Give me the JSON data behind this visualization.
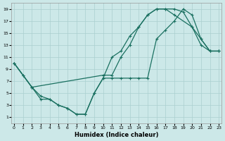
{
  "bg_color": "#cce8e8",
  "grid_color": "#aacfcf",
  "line_color": "#1a7060",
  "xlabel": "Humidex (Indice chaleur)",
  "xlim": [
    -0.3,
    23.3
  ],
  "ylim": [
    0,
    20
  ],
  "xticks": [
    0,
    1,
    2,
    3,
    4,
    5,
    6,
    7,
    8,
    9,
    10,
    11,
    12,
    13,
    14,
    15,
    16,
    17,
    18,
    19,
    20,
    21,
    22,
    23
  ],
  "yticks": [
    1,
    3,
    5,
    7,
    9,
    11,
    13,
    15,
    17,
    19
  ],
  "line1_x": [
    0,
    1,
    2,
    3,
    4,
    5,
    6,
    7,
    8,
    9,
    10,
    11,
    12,
    13,
    14,
    15,
    16,
    17,
    18,
    19,
    20,
    21,
    22,
    23
  ],
  "line1_y": [
    10,
    8,
    6,
    4,
    4,
    3,
    2.5,
    1.5,
    1.5,
    5,
    7.5,
    11,
    12,
    14.5,
    16,
    18,
    19,
    19,
    19,
    18.5,
    16,
    13,
    12,
    12
  ],
  "line2_x": [
    0,
    2,
    10,
    11,
    12,
    13,
    14,
    15,
    16,
    17,
    18,
    20,
    21,
    22,
    23
  ],
  "line2_y": [
    10,
    6,
    8,
    8,
    11,
    13,
    16,
    18,
    19,
    19,
    18,
    16,
    14,
    12,
    12
  ],
  "line3_x": [
    0,
    1,
    2,
    3,
    4,
    5,
    6,
    7,
    8,
    9,
    10,
    11,
    12,
    13,
    14,
    15,
    16,
    17,
    18,
    19,
    20,
    21,
    22,
    23
  ],
  "line3_y": [
    10,
    8,
    6,
    4.5,
    4,
    3,
    2.5,
    1.5,
    1.5,
    5,
    7.5,
    7.5,
    7.5,
    7.5,
    7.5,
    7.5,
    14,
    15.5,
    17,
    19,
    18,
    14,
    12,
    12
  ]
}
